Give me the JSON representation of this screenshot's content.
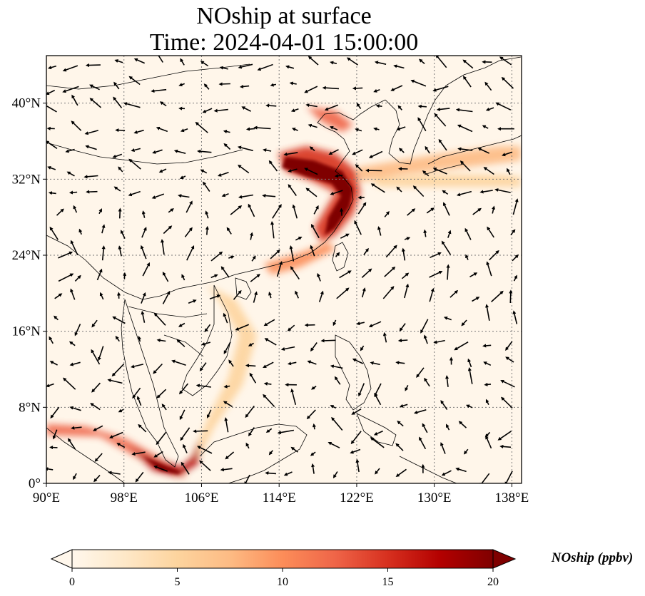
{
  "title": {
    "line1": "NOship at surface",
    "line2": "Time: 2024-04-01 15:00:00"
  },
  "map": {
    "lon_range": [
      90,
      139
    ],
    "lat_range": [
      0,
      45
    ],
    "x_ticks": [
      {
        "value": 90,
        "label": "90°E"
      },
      {
        "value": 98,
        "label": "98°E"
      },
      {
        "value": 106,
        "label": "106°E"
      },
      {
        "value": 114,
        "label": "114°E"
      },
      {
        "value": 122,
        "label": "122°E"
      },
      {
        "value": 130,
        "label": "130°E"
      },
      {
        "value": 138,
        "label": "138°E"
      }
    ],
    "y_ticks": [
      {
        "value": 0,
        "label": "0°"
      },
      {
        "value": 8,
        "label": "8°N"
      },
      {
        "value": 16,
        "label": "16°N"
      },
      {
        "value": 24,
        "label": "24°N"
      },
      {
        "value": 32,
        "label": "32°N"
      },
      {
        "value": 40,
        "label": "40°N"
      }
    ],
    "gridlines": true,
    "background_color": "#fff6ea",
    "vector_field": "wind arrows"
  },
  "colorbar": {
    "label": "NOship (ppbv)",
    "min": 0,
    "max": 20,
    "ticks": [
      0,
      5,
      10,
      15,
      20
    ],
    "extend": "both",
    "colormap": "OrRd",
    "colors": [
      "#fff7ec",
      "#fee8c8",
      "#fdd49e",
      "#fdbb84",
      "#fc8d59",
      "#ef6548",
      "#d7301f",
      "#b30000",
      "#7f0000"
    ]
  }
}
